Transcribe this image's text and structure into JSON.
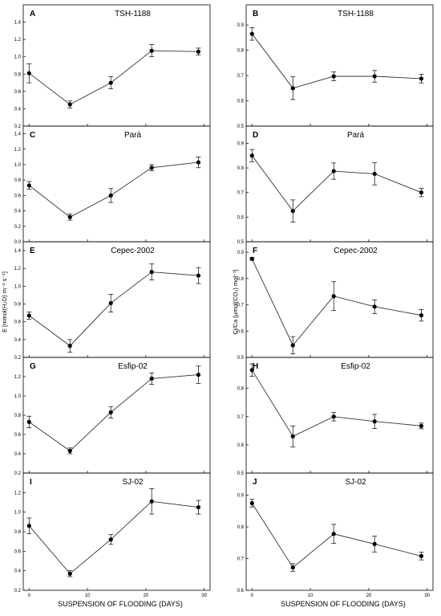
{
  "figure": {
    "xlabel_left": "SUSPENSION OF FLOODING (DAYS)",
    "xlabel_right": "SUSPENSION OF FLOODING (DAYS)",
    "ylabel_left": "E [mmol(H₂O) m⁻² s⁻¹]",
    "ylabel_right": "Ci/Ca [µmol(CO₂) mol⁻¹]"
  },
  "chart_data": [
    {
      "panel": "A",
      "title": "TSH-1188",
      "type": "line",
      "x": [
        0,
        7,
        14,
        21,
        29
      ],
      "values": [
        0.81,
        0.45,
        0.7,
        1.07,
        1.06
      ],
      "errors": [
        0.11,
        0.04,
        0.07,
        0.07,
        0.04
      ],
      "ylim": [
        0.2,
        1.6
      ],
      "yticks": [
        "0.2",
        "0.4",
        "0.6",
        "0.8",
        "1.0",
        "1.2",
        "1.4"
      ],
      "xticks": [
        "0",
        "10",
        "20",
        "30"
      ],
      "xlim": [
        -1,
        31
      ]
    },
    {
      "panel": "B",
      "title": "TSH-1188",
      "type": "line",
      "x": [
        0,
        7,
        14,
        21,
        29
      ],
      "values": [
        0.865,
        0.65,
        0.697,
        0.697,
        0.688
      ],
      "errors": [
        0.025,
        0.045,
        0.017,
        0.023,
        0.017
      ],
      "ylim": [
        0.5,
        0.98
      ],
      "yticks": [
        "0.5",
        "0.6",
        "0.7",
        "0.8",
        "0.9"
      ],
      "xticks": [
        "0",
        "10",
        "20",
        "30"
      ],
      "xlim": [
        -1,
        31
      ]
    },
    {
      "panel": "C",
      "title": "Pará",
      "type": "line",
      "x": [
        0,
        7,
        14,
        21,
        29
      ],
      "values": [
        0.73,
        0.32,
        0.6,
        0.96,
        1.03
      ],
      "errors": [
        0.05,
        0.04,
        0.09,
        0.04,
        0.07
      ],
      "ylim": [
        0.0,
        1.5
      ],
      "yticks": [
        "0.0",
        "0.2",
        "0.4",
        "0.6",
        "0.8",
        "1.0",
        "1.2",
        "1.4"
      ],
      "xticks": [
        "0",
        "10",
        "20",
        "30"
      ],
      "xlim": [
        -1,
        31
      ]
    },
    {
      "panel": "D",
      "title": "Pará",
      "type": "line",
      "x": [
        0,
        7,
        14,
        21,
        29
      ],
      "values": [
        0.85,
        0.625,
        0.787,
        0.776,
        0.7
      ],
      "errors": [
        0.025,
        0.045,
        0.033,
        0.045,
        0.017
      ],
      "ylim": [
        0.5,
        0.97
      ],
      "yticks": [
        "0.5",
        "0.6",
        "0.7",
        "0.8",
        "0.9"
      ],
      "xticks": [
        "0",
        "10",
        "20",
        "30"
      ],
      "xlim": [
        -1,
        31
      ]
    },
    {
      "panel": "E",
      "title": "Cepec-2002",
      "type": "line",
      "x": [
        0,
        7,
        14,
        21,
        29
      ],
      "values": [
        0.67,
        0.33,
        0.81,
        1.16,
        1.12
      ],
      "errors": [
        0.04,
        0.07,
        0.1,
        0.09,
        0.09
      ],
      "ylim": [
        0.2,
        1.5
      ],
      "yticks": [
        "0.2",
        "0.4",
        "0.6",
        "0.8",
        "1.0",
        "1.2",
        "1.4"
      ],
      "xticks": [
        "0",
        "10",
        "20",
        "30"
      ],
      "xlim": [
        -1,
        31
      ]
    },
    {
      "panel": "F",
      "title": "Cepec-2002",
      "type": "line",
      "x": [
        0,
        7,
        14,
        21,
        29
      ],
      "values": [
        0.875,
        0.546,
        0.733,
        0.693,
        0.66
      ],
      "errors": [
        0.005,
        0.033,
        0.055,
        0.026,
        0.022
      ],
      "ylim": [
        0.5,
        0.94
      ],
      "yticks": [
        "0.5",
        "0.6",
        "0.7",
        "0.8",
        "0.9"
      ],
      "xticks": [
        "0",
        "10",
        "20",
        "30"
      ],
      "xlim": [
        -1,
        31
      ]
    },
    {
      "panel": "G",
      "title": "Esfip-02",
      "type": "line",
      "x": [
        0,
        7,
        14,
        21,
        29
      ],
      "values": [
        0.73,
        0.43,
        0.83,
        1.18,
        1.22
      ],
      "errors": [
        0.06,
        0.03,
        0.06,
        0.06,
        0.09
      ],
      "ylim": [
        0.2,
        1.4
      ],
      "yticks": [
        "0.2",
        "0.4",
        "0.6",
        "0.8",
        "1.0",
        "1.2"
      ],
      "xticks": [
        "0",
        "10",
        "20",
        "30"
      ],
      "xlim": [
        -1,
        31
      ]
    },
    {
      "panel": "H",
      "title": "Esfip-02",
      "type": "line",
      "x": [
        0,
        7,
        14,
        21,
        29
      ],
      "values": [
        0.865,
        0.63,
        0.7,
        0.683,
        0.667
      ],
      "errors": [
        0.022,
        0.037,
        0.015,
        0.025,
        0.01
      ],
      "ylim": [
        0.5,
        0.91
      ],
      "yticks": [
        "0.5",
        "0.6",
        "0.7",
        "0.8"
      ],
      "xticks": [
        "0",
        "10",
        "20",
        "30"
      ],
      "xlim": [
        -1,
        31
      ]
    },
    {
      "panel": "I",
      "title": "SJ-02",
      "type": "line",
      "x": [
        0,
        7,
        14,
        21,
        29
      ],
      "values": [
        0.86,
        0.37,
        0.72,
        1.11,
        1.05
      ],
      "errors": [
        0.08,
        0.03,
        0.05,
        0.13,
        0.07
      ],
      "ylim": [
        0.2,
        1.4
      ],
      "yticks": [
        "0.2",
        "0.4",
        "0.6",
        "0.8",
        "1.0",
        "1.2"
      ],
      "xticks": [
        "0",
        "10",
        "20",
        "30"
      ],
      "xlim": [
        -1,
        31
      ]
    },
    {
      "panel": "J",
      "title": "SJ-02",
      "type": "line",
      "x": [
        0,
        7,
        14,
        21,
        29
      ],
      "values": [
        0.875,
        0.672,
        0.778,
        0.746,
        0.708
      ],
      "errors": [
        0.012,
        0.012,
        0.03,
        0.025,
        0.012
      ],
      "ylim": [
        0.6,
        0.97
      ],
      "yticks": [
        "0.6",
        "0.7",
        "0.8",
        "0.9"
      ],
      "xticks": [
        "0",
        "10",
        "20",
        "30"
      ],
      "xlim": [
        -1,
        31
      ]
    }
  ]
}
